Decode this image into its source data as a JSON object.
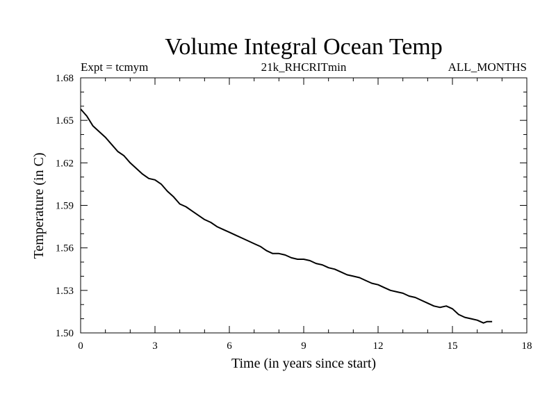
{
  "chart_data": {
    "type": "line",
    "title": "Volume Integral Ocean Temp",
    "subtitle_left": "Expt = tcmym",
    "subtitle_center": "21k_RHCRITmin",
    "subtitle_right": "ALL_MONTHS",
    "xlabel": "Time (in years since start)",
    "ylabel": "Temperature (in C)",
    "xlim": [
      0,
      18
    ],
    "ylim": [
      1.5,
      1.68
    ],
    "xticks": [
      0,
      3,
      6,
      9,
      12,
      15,
      18
    ],
    "xtick_labels": [
      "0",
      "3",
      "6",
      "9",
      "12",
      "15",
      "18"
    ],
    "yticks": [
      1.5,
      1.53,
      1.56,
      1.59,
      1.62,
      1.65,
      1.68
    ],
    "ytick_labels": [
      "1.50",
      "1.53",
      "1.56",
      "1.59",
      "1.62",
      "1.65",
      "1.68"
    ],
    "grid": false,
    "series": [
      {
        "name": "Volume Integral Ocean Temp",
        "x": [
          0,
          0.25,
          0.5,
          0.75,
          1.0,
          1.25,
          1.5,
          1.75,
          2.0,
          2.25,
          2.5,
          2.75,
          3.0,
          3.25,
          3.5,
          3.75,
          4.0,
          4.25,
          4.5,
          4.75,
          5.0,
          5.25,
          5.5,
          5.75,
          6.0,
          6.25,
          6.5,
          6.75,
          7.0,
          7.25,
          7.5,
          7.75,
          8.0,
          8.25,
          8.5,
          8.75,
          9.0,
          9.25,
          9.5,
          9.75,
          10.0,
          10.25,
          10.5,
          10.75,
          11.0,
          11.25,
          11.5,
          11.75,
          12.0,
          12.25,
          12.5,
          12.75,
          13.0,
          13.25,
          13.5,
          13.75,
          14.0,
          14.25,
          14.5,
          14.75,
          15.0,
          15.25,
          15.5,
          15.75,
          16.0,
          16.25,
          16.4,
          16.6
        ],
        "values": [
          1.658,
          1.653,
          1.646,
          1.642,
          1.638,
          1.633,
          1.628,
          1.625,
          1.62,
          1.616,
          1.612,
          1.609,
          1.608,
          1.605,
          1.6,
          1.596,
          1.591,
          1.589,
          1.586,
          1.583,
          1.58,
          1.578,
          1.575,
          1.573,
          1.571,
          1.569,
          1.567,
          1.565,
          1.563,
          1.561,
          1.558,
          1.556,
          1.556,
          1.555,
          1.553,
          1.552,
          1.552,
          1.551,
          1.549,
          1.548,
          1.546,
          1.545,
          1.543,
          1.541,
          1.54,
          1.539,
          1.537,
          1.535,
          1.534,
          1.532,
          1.53,
          1.529,
          1.528,
          1.526,
          1.525,
          1.523,
          1.521,
          1.519,
          1.518,
          1.519,
          1.517,
          1.513,
          1.511,
          1.51,
          1.509,
          1.507,
          1.508,
          1.508
        ]
      }
    ]
  }
}
